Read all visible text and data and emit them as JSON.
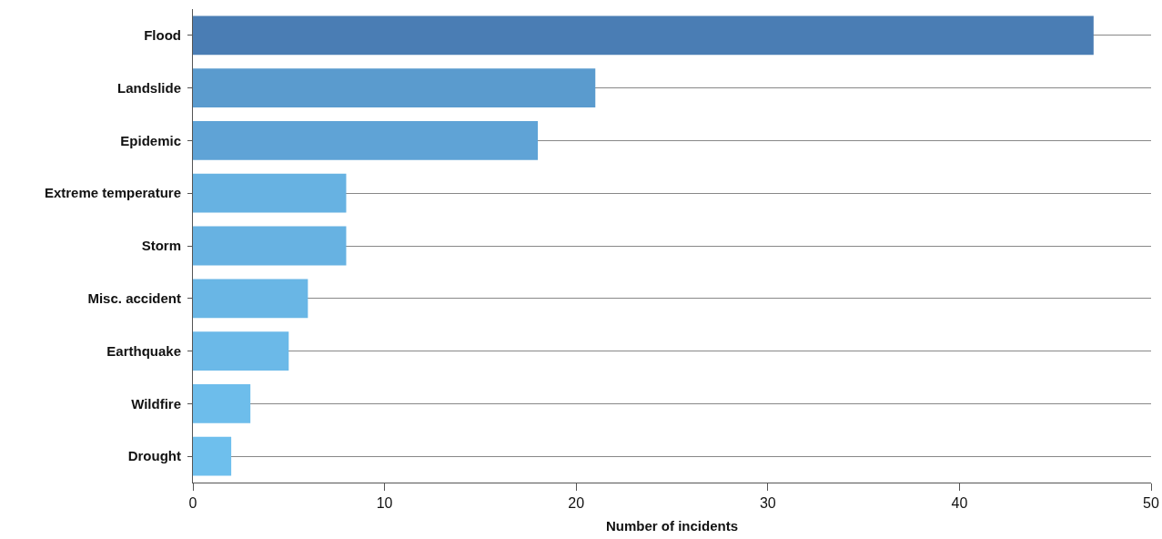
{
  "chart_data": {
    "type": "bar",
    "orientation": "horizontal",
    "xlabel": "Number of incidents",
    "categories": [
      "Flood",
      "Landslide",
      "Epidemic",
      "Extreme temperature",
      "Storm",
      "Misc. accident",
      "Earthquake",
      "Wildfire",
      "Drought"
    ],
    "values": [
      47,
      21,
      18,
      8,
      8,
      6,
      5,
      3,
      2
    ],
    "colors": [
      "#4a7db4",
      "#5a9bce",
      "#5fa3d6",
      "#67b2e2",
      "#67b2e2",
      "#69b6e5",
      "#6bb9e8",
      "#6dbdeb",
      "#6ebfed"
    ],
    "xlim": [
      0,
      50
    ],
    "xticks": [
      0,
      10,
      20,
      30,
      40,
      50
    ],
    "grid": "y"
  }
}
